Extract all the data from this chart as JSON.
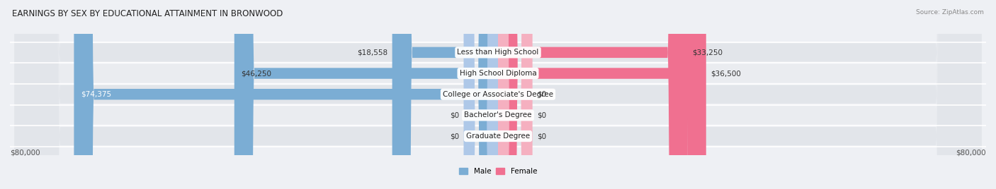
{
  "title": "EARNINGS BY SEX BY EDUCATIONAL ATTAINMENT IN BRONWOOD",
  "source": "Source: ZipAtlas.com",
  "categories": [
    "Less than High School",
    "High School Diploma",
    "College or Associate's Degree",
    "Bachelor's Degree",
    "Graduate Degree"
  ],
  "male_values": [
    18558,
    46250,
    74375,
    0,
    0
  ],
  "female_values": [
    33250,
    36500,
    0,
    0,
    0
  ],
  "male_color": "#7badd4",
  "female_color": "#f07090",
  "male_zero_color": "#aec8e8",
  "female_zero_color": "#f5b0c0",
  "max_value": 80000,
  "bg_color": "#eef0f4",
  "row_colors": [
    "#e2e5ea",
    "#eaecf0"
  ],
  "title_fontsize": 8.5,
  "label_fontsize": 7.5,
  "value_fontsize": 7.5,
  "axis_label": "$80,000",
  "legend_male": "Male",
  "legend_female": "Female",
  "zero_stub": 6000
}
